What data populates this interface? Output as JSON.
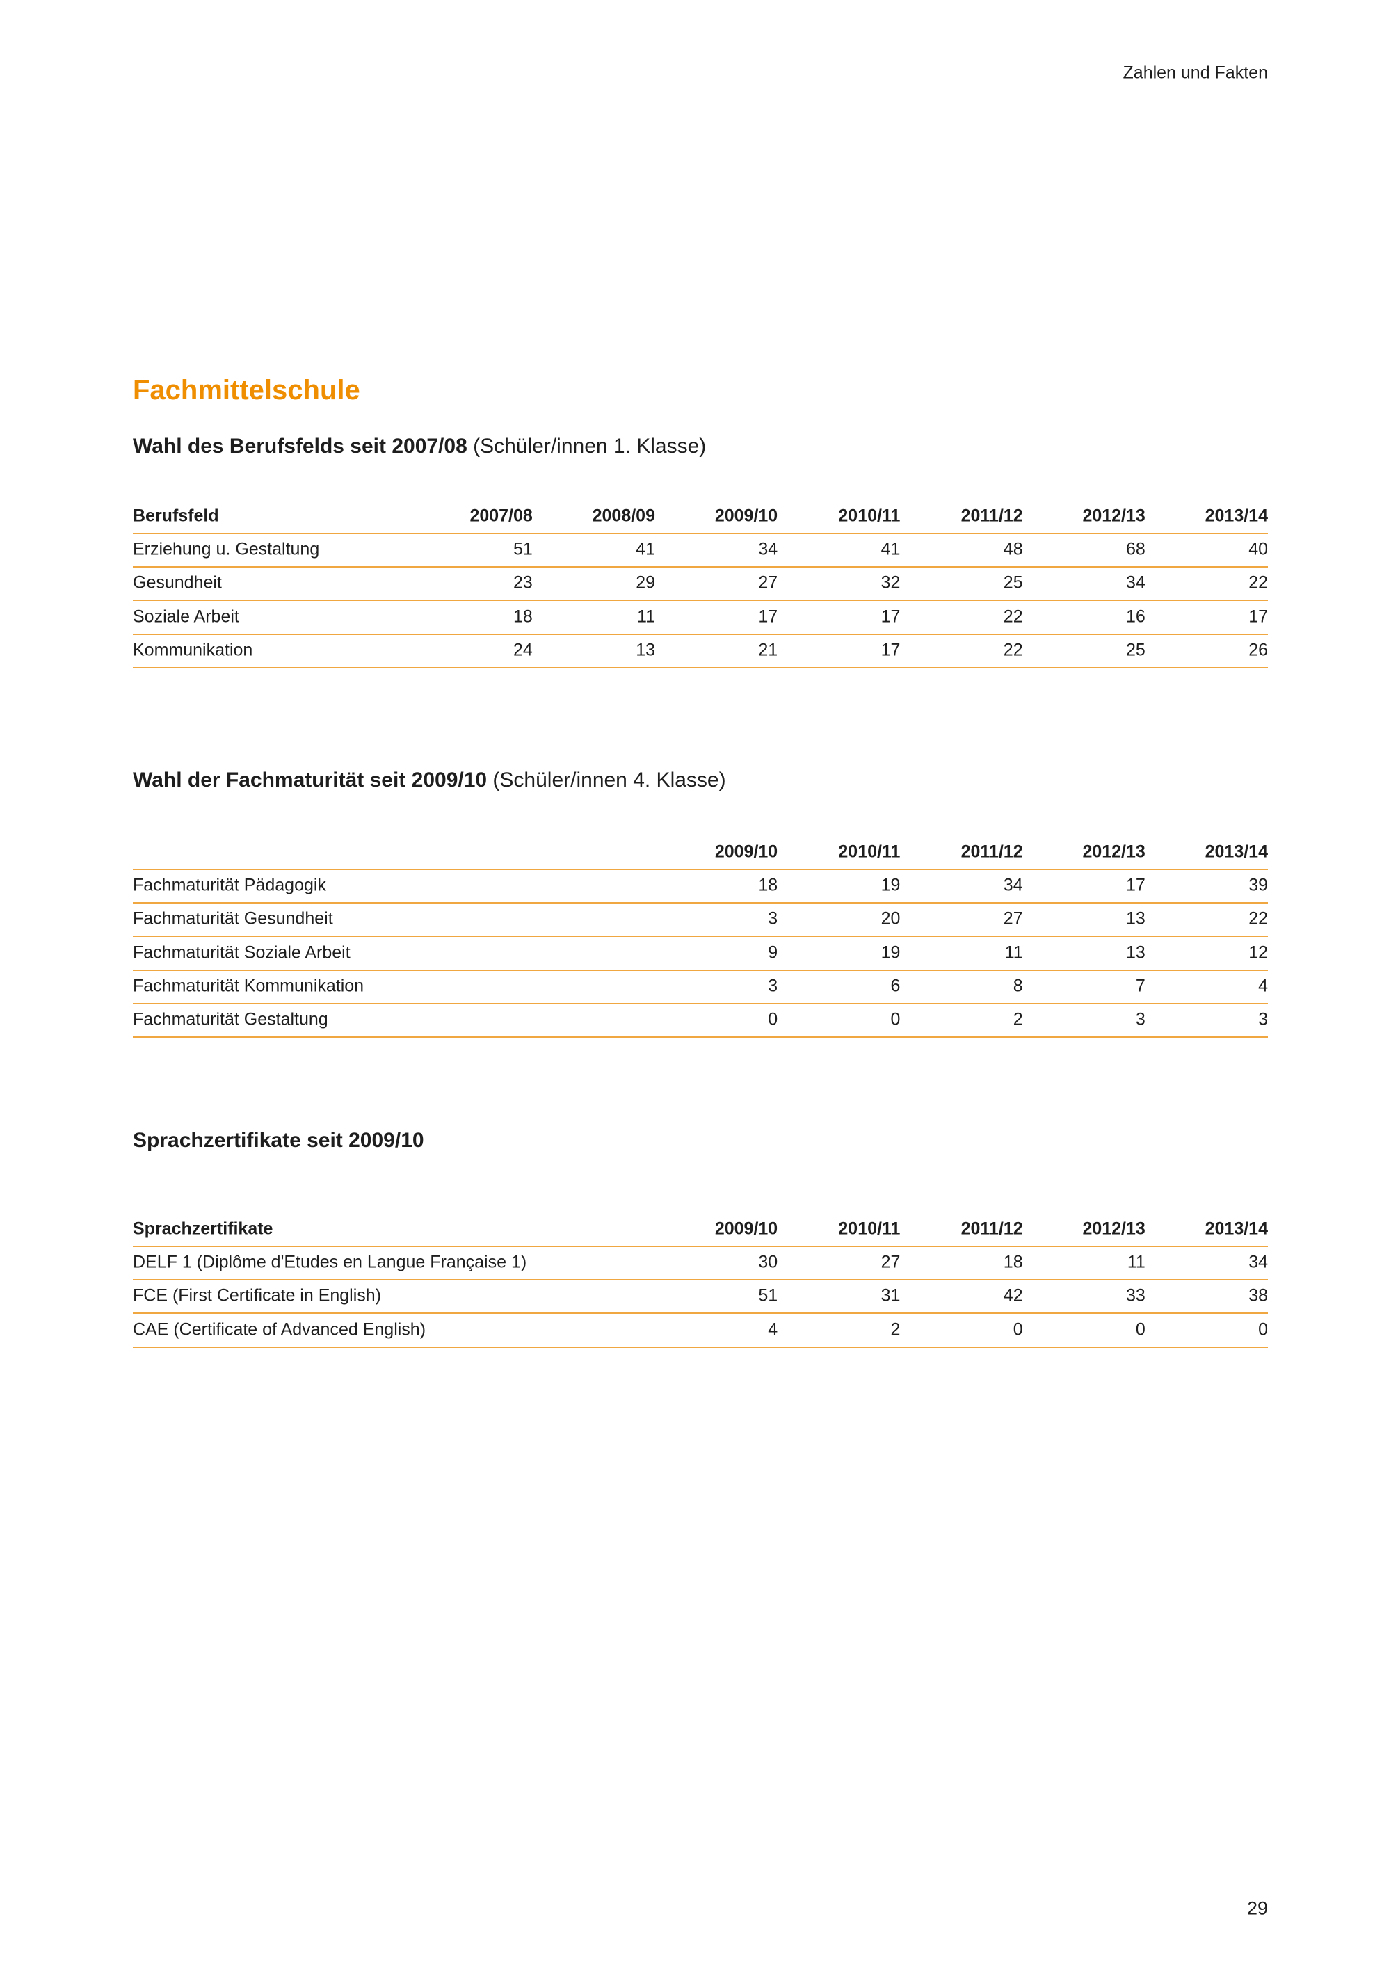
{
  "header": {
    "title": "Zahlen und Fakten"
  },
  "heading": "Fachmittelschule",
  "sections": [
    {
      "title": "Wahl des Berufsfelds seit 2007/08",
      "note": "(Schüler/innen 1. Klasse)",
      "table": {
        "row_header": "Berufsfeld",
        "columns": [
          "2007/08",
          "2008/09",
          "2009/10",
          "2010/11",
          "2011/12",
          "2012/13",
          "2013/14"
        ],
        "rows": [
          {
            "label": "Erziehung u. Gestaltung",
            "values": [
              51,
              41,
              34,
              41,
              48,
              68,
              40
            ]
          },
          {
            "label": "Gesundheit",
            "values": [
              23,
              29,
              27,
              32,
              25,
              34,
              22
            ]
          },
          {
            "label": "Soziale Arbeit",
            "values": [
              18,
              11,
              17,
              17,
              22,
              16,
              17
            ]
          },
          {
            "label": "Kommunikation",
            "values": [
              24,
              13,
              21,
              17,
              22,
              25,
              26
            ]
          }
        ]
      }
    },
    {
      "title": "Wahl der Fachmaturität seit 2009/10",
      "note": "(Schüler/innen 4. Klasse)",
      "table": {
        "columns": [
          "2009/10",
          "2010/11",
          "2011/12",
          "2012/13",
          "2013/14"
        ],
        "rows": [
          {
            "label": "Fachmaturität Pädagogik",
            "values": [
              18,
              19,
              34,
              17,
              39
            ]
          },
          {
            "label": "Fachmaturität Gesundheit",
            "values": [
              3,
              20,
              27,
              13,
              22
            ]
          },
          {
            "label": "Fachmaturität Soziale Arbeit",
            "values": [
              9,
              19,
              11,
              13,
              12
            ]
          },
          {
            "label": "Fachmaturität Kommunikation",
            "values": [
              3,
              6,
              8,
              7,
              4
            ]
          },
          {
            "label": "Fachmaturität Gestaltung",
            "values": [
              0,
              0,
              2,
              3,
              3
            ]
          }
        ]
      }
    },
    {
      "title": "Sprachzertifikate seit 2009/10",
      "table": {
        "row_header": "Sprachzertifikate",
        "columns": [
          "2009/10",
          "2010/11",
          "2011/12",
          "2012/13",
          "2013/14"
        ],
        "rows": [
          {
            "label": "DELF 1 (Diplôme d'Etudes en Langue Française 1)",
            "values": [
              30,
              27,
              18,
              11,
              34
            ]
          },
          {
            "label": "FCE (First Certificate in English)",
            "values": [
              51,
              31,
              42,
              33,
              38
            ]
          },
          {
            "label": "CAE (Certificate of Advanced English)",
            "values": [
              4,
              2,
              0,
              0,
              0
            ]
          }
        ]
      }
    }
  ],
  "page_number": "29"
}
